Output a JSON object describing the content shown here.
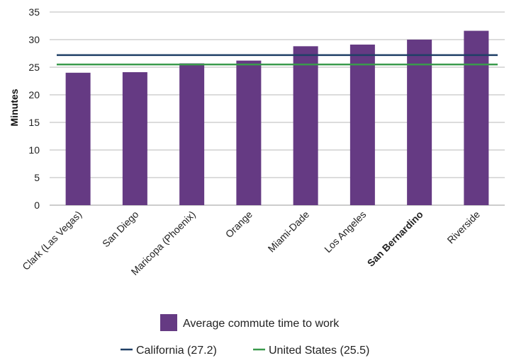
{
  "chart_data": {
    "type": "bar",
    "title": "",
    "xlabel": "",
    "ylabel": "Minutes",
    "ylim": [
      0,
      35
    ],
    "yticks": [
      0,
      5,
      10,
      15,
      20,
      25,
      30,
      35
    ],
    "grid": true,
    "categories": [
      "Clark (Las Vegas)",
      "San Diego",
      "Maricopa (Phoenix)",
      "Orange",
      "Miami-Dade",
      "Los Angeles",
      "San Bernardino",
      "Riverside"
    ],
    "bold_categories": [
      "San Bernardino"
    ],
    "series": [
      {
        "name": "Average commute time to work",
        "values": [
          24.0,
          24.1,
          25.7,
          26.2,
          28.8,
          29.1,
          30.0,
          31.6
        ],
        "color": "#653a83"
      }
    ],
    "reference_lines": [
      {
        "name": "California (27.2)",
        "value": 27.2,
        "color": "#1f3f66"
      },
      {
        "name": "United States (25.5)",
        "value": 25.5,
        "color": "#3a9a4c"
      }
    ],
    "legend_placement": "bottom"
  }
}
